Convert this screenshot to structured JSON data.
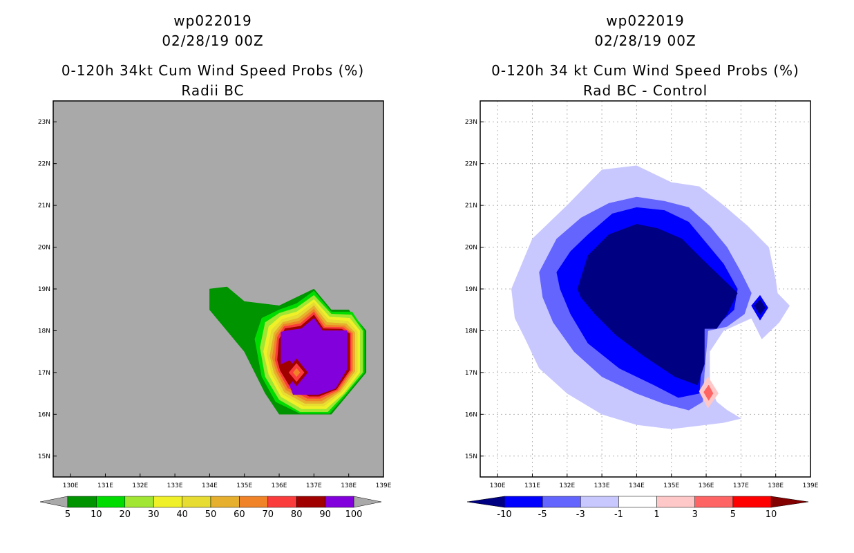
{
  "left_panel": {
    "title_lines": [
      "wp022019",
      "02/28/19 00Z",
      "0-120h 34kt Cum Wind Speed Probs (%)",
      "Radii BC"
    ],
    "background_color": "#a9a9a9",
    "colorbar": {
      "colors": [
        "#009400",
        "#00dc00",
        "#a0e632",
        "#f0f028",
        "#e6dc32",
        "#e6af2d",
        "#f08228",
        "#fa3c3c",
        "#a00000",
        "#8200dc"
      ],
      "labels": [
        "5",
        "10",
        "20",
        "30",
        "40",
        "50",
        "60",
        "70",
        "80",
        "90",
        "100"
      ]
    }
  },
  "right_panel": {
    "title_lines": [
      "wp022019",
      "02/28/19 00Z",
      "0-120h 34 kt Cum Wind Speed Probs (%)",
      "Rad BC - Control"
    ],
    "background_color": "#ffffff",
    "colorbar": {
      "colors": [
        "#000082",
        "#0000ff",
        "#6464ff",
        "#c8c8ff",
        "#ffffff",
        "#ffc8c8",
        "#ff6464",
        "#ff0000",
        "#820000"
      ],
      "labels": [
        "-10",
        "-5",
        "-3",
        "-1",
        "1",
        "3",
        "5",
        "10"
      ]
    }
  },
  "axes": {
    "lon_ticks": [
      "130E",
      "131E",
      "132E",
      "133E",
      "134E",
      "135E",
      "136E",
      "137E",
      "138E",
      "139E"
    ],
    "lat_ticks": [
      "15N",
      "16N",
      "17N",
      "18N",
      "19N",
      "20N",
      "21N",
      "22N",
      "23N"
    ],
    "lon_range": [
      129.5,
      139
    ],
    "lat_range": [
      14.5,
      23.5
    ]
  },
  "map_data": {
    "left_contours": [
      {
        "level": "5",
        "color": "#009400",
        "points": [
          [
            134,
            19
          ],
          [
            134.5,
            19.05
          ],
          [
            135,
            18.7
          ],
          [
            136,
            18.6
          ],
          [
            136.5,
            18.8
          ],
          [
            137,
            19
          ],
          [
            137.5,
            18.5
          ],
          [
            138,
            18.5
          ],
          [
            138.5,
            18
          ],
          [
            138.5,
            17
          ],
          [
            138,
            16.5
          ],
          [
            137.5,
            16
          ],
          [
            136,
            16
          ],
          [
            135.6,
            16.5
          ],
          [
            135,
            17.5
          ],
          [
            134,
            18.5
          ]
        ]
      },
      {
        "level": "10",
        "color": "#00dc00",
        "points": [
          [
            135.3,
            17.8
          ],
          [
            135.5,
            18.3
          ],
          [
            136,
            18.5
          ],
          [
            136.5,
            18.65
          ],
          [
            137,
            18.95
          ],
          [
            137.5,
            18.45
          ],
          [
            138.1,
            18.45
          ],
          [
            138.45,
            18
          ],
          [
            138.45,
            17
          ],
          [
            137.95,
            16.5
          ],
          [
            137.45,
            16.02
          ],
          [
            136.6,
            16.02
          ],
          [
            135.9,
            16.3
          ],
          [
            135.5,
            16.9
          ]
        ]
      },
      {
        "level": "20",
        "color": "#a0e632",
        "points": [
          [
            135.45,
            17.6
          ],
          [
            135.6,
            18.2
          ],
          [
            136,
            18.42
          ],
          [
            136.5,
            18.55
          ],
          [
            137,
            18.85
          ],
          [
            137.5,
            18.4
          ],
          [
            138.08,
            18.38
          ],
          [
            138.4,
            18
          ],
          [
            138.4,
            17
          ],
          [
            137.9,
            16.5
          ],
          [
            137.4,
            16.06
          ],
          [
            136.6,
            16.06
          ],
          [
            136,
            16.35
          ],
          [
            135.6,
            16.9
          ]
        ]
      },
      {
        "level": "30",
        "color": "#f0f028",
        "points": [
          [
            135.55,
            17.5
          ],
          [
            135.7,
            18.1
          ],
          [
            136.05,
            18.35
          ],
          [
            136.5,
            18.45
          ],
          [
            137,
            18.75
          ],
          [
            137.45,
            18.33
          ],
          [
            138.03,
            18.3
          ],
          [
            138.32,
            18
          ],
          [
            138.32,
            17
          ],
          [
            137.85,
            16.5
          ],
          [
            137.35,
            16.13
          ],
          [
            136.65,
            16.13
          ],
          [
            136.05,
            16.42
          ],
          [
            135.7,
            16.95
          ]
        ]
      },
      {
        "level": "40",
        "color": "#e6dc32",
        "points": [
          [
            135.65,
            17.45
          ],
          [
            135.78,
            18.02
          ],
          [
            136.08,
            18.27
          ],
          [
            136.52,
            18.38
          ],
          [
            137,
            18.68
          ],
          [
            137.42,
            18.27
          ],
          [
            137.98,
            18.23
          ],
          [
            138.25,
            17.98
          ],
          [
            138.25,
            17.02
          ],
          [
            137.8,
            16.52
          ],
          [
            137.3,
            16.2
          ],
          [
            136.7,
            16.2
          ],
          [
            136.1,
            16.48
          ],
          [
            135.78,
            16.98
          ]
        ]
      },
      {
        "level": "50",
        "color": "#e6af2d",
        "points": [
          [
            135.73,
            17.4
          ],
          [
            135.85,
            17.95
          ],
          [
            136.1,
            18.2
          ],
          [
            136.55,
            18.3
          ],
          [
            137,
            18.6
          ],
          [
            137.38,
            18.2
          ],
          [
            137.93,
            18.17
          ],
          [
            138.18,
            17.96
          ],
          [
            138.18,
            17.03
          ],
          [
            137.75,
            16.54
          ],
          [
            137.26,
            16.26
          ],
          [
            136.74,
            16.26
          ],
          [
            136.15,
            16.53
          ],
          [
            135.85,
            17
          ]
        ]
      },
      {
        "level": "60",
        "color": "#f08228",
        "points": [
          [
            135.8,
            17.35
          ],
          [
            135.9,
            17.9
          ],
          [
            136.12,
            18.15
          ],
          [
            136.57,
            18.23
          ],
          [
            137,
            18.52
          ],
          [
            137.34,
            18.14
          ],
          [
            137.88,
            18.12
          ],
          [
            138.12,
            17.95
          ],
          [
            138.12,
            17.04
          ],
          [
            137.72,
            16.56
          ],
          [
            137.22,
            16.32
          ],
          [
            136.78,
            16.32
          ],
          [
            136.2,
            16.58
          ],
          [
            135.92,
            17.02
          ]
        ]
      },
      {
        "level": "70",
        "color": "#fa3c3c",
        "points": [
          [
            135.88,
            17.3
          ],
          [
            135.95,
            17.85
          ],
          [
            136.14,
            18.1
          ],
          [
            136.6,
            18.17
          ],
          [
            137,
            18.45
          ],
          [
            137.3,
            18.09
          ],
          [
            137.84,
            18.08
          ],
          [
            138.07,
            17.94
          ],
          [
            138.07,
            17.05
          ],
          [
            137.68,
            16.58
          ],
          [
            137.18,
            16.38
          ],
          [
            136.82,
            16.38
          ],
          [
            136.25,
            16.63
          ],
          [
            135.98,
            17.04
          ]
        ]
      },
      {
        "level": "80",
        "color": "#a00000",
        "points": [
          [
            135.95,
            17.3
          ],
          [
            136,
            17.8
          ],
          [
            136.17,
            18.05
          ],
          [
            136.62,
            18.11
          ],
          [
            137,
            18.38
          ],
          [
            137.27,
            18.05
          ],
          [
            137.8,
            18.04
          ],
          [
            138.03,
            17.93
          ],
          [
            138.03,
            17.06
          ],
          [
            137.65,
            16.6
          ],
          [
            137.15,
            16.43
          ],
          [
            136.86,
            16.43
          ],
          [
            136.3,
            16.68
          ],
          [
            136.03,
            17.05
          ]
        ]
      },
      {
        "level": "90",
        "color": "#8200dc",
        "points": [
          [
            136.05,
            17.2
          ],
          [
            136.05,
            17.97
          ],
          [
            136.22,
            18
          ],
          [
            136.64,
            18.05
          ],
          [
            137,
            18.3
          ],
          [
            137.25,
            18
          ],
          [
            137.95,
            18
          ],
          [
            137.95,
            17.08
          ],
          [
            137.62,
            16.62
          ],
          [
            137.12,
            16.47
          ],
          [
            136.4,
            16.47
          ],
          [
            136.3,
            16.7
          ],
          [
            136.6,
            17
          ],
          [
            136.3,
            17.3
          ]
        ]
      },
      {
        "level": "80-inner",
        "color": "#a00000",
        "points": [
          [
            136.5,
            17.33
          ],
          [
            136.82,
            17
          ],
          [
            136.5,
            16.68
          ],
          [
            136.18,
            17
          ]
        ]
      },
      {
        "level": "70-inner",
        "color": "#fa3c3c",
        "points": [
          [
            136.5,
            17.22
          ],
          [
            136.72,
            17
          ],
          [
            136.5,
            16.78
          ],
          [
            136.28,
            17
          ]
        ]
      },
      {
        "level": "60-inner",
        "color": "#f08228",
        "points": [
          [
            136.5,
            17.1
          ],
          [
            136.6,
            17
          ],
          [
            136.5,
            16.9
          ],
          [
            136.4,
            17
          ]
        ]
      }
    ],
    "right_contours": [
      {
        "level": "-1",
        "color": "#c8c8ff",
        "points": [
          [
            130.4,
            19
          ],
          [
            131,
            20.2
          ],
          [
            132,
            21
          ],
          [
            133,
            21.85
          ],
          [
            134,
            21.95
          ],
          [
            135,
            21.55
          ],
          [
            135.8,
            21.45
          ],
          [
            136.5,
            21
          ],
          [
            137.2,
            20.5
          ],
          [
            137.8,
            20
          ],
          [
            138,
            19.2
          ],
          [
            138.05,
            18.9
          ],
          [
            138.4,
            18.6
          ],
          [
            138.1,
            18.2
          ],
          [
            137.6,
            17.8
          ],
          [
            137.3,
            18.3
          ],
          [
            136.5,
            18
          ],
          [
            136.1,
            17.5
          ],
          [
            136.1,
            16.7
          ],
          [
            136.3,
            16.3
          ],
          [
            136.6,
            16.1
          ],
          [
            137,
            15.9
          ],
          [
            136.5,
            15.8
          ],
          [
            136,
            15.75
          ],
          [
            135,
            15.65
          ],
          [
            134,
            15.75
          ],
          [
            133,
            16
          ],
          [
            132,
            16.5
          ],
          [
            131.2,
            17.1
          ],
          [
            130.8,
            17.8
          ],
          [
            130.5,
            18.3
          ]
        ]
      },
      {
        "level": "-3",
        "color": "#6464ff",
        "points": [
          [
            131.2,
            19.4
          ],
          [
            131.7,
            20.2
          ],
          [
            132.4,
            20.7
          ],
          [
            133.2,
            21.05
          ],
          [
            134,
            21.2
          ],
          [
            134.8,
            21.1
          ],
          [
            135.5,
            20.95
          ],
          [
            136.1,
            20.5
          ],
          [
            136.6,
            20
          ],
          [
            137,
            19.4
          ],
          [
            137.3,
            18.9
          ],
          [
            137.1,
            18.4
          ],
          [
            136.6,
            18.1
          ],
          [
            136.05,
            18
          ],
          [
            135.95,
            17
          ],
          [
            135.9,
            16.3
          ],
          [
            135.5,
            16.1
          ],
          [
            134.8,
            16.25
          ],
          [
            134,
            16.5
          ],
          [
            133,
            16.9
          ],
          [
            132.2,
            17.5
          ],
          [
            131.6,
            18.2
          ],
          [
            131.3,
            18.8
          ]
        ]
      },
      {
        "level": "-5",
        "color": "#0000ff",
        "points": [
          [
            131.7,
            19.4
          ],
          [
            132.1,
            19.9
          ],
          [
            132.6,
            20.3
          ],
          [
            133.3,
            20.8
          ],
          [
            134,
            20.95
          ],
          [
            134.8,
            20.88
          ],
          [
            135.5,
            20.6
          ],
          [
            136,
            20.1
          ],
          [
            136.5,
            19.6
          ],
          [
            136.9,
            19
          ],
          [
            136.8,
            18.5
          ],
          [
            136.4,
            18.2
          ],
          [
            135.95,
            18.05
          ],
          [
            135.85,
            17
          ],
          [
            135.8,
            16.5
          ],
          [
            135.2,
            16.4
          ],
          [
            134.5,
            16.7
          ],
          [
            133.5,
            17.1
          ],
          [
            132.6,
            17.7
          ],
          [
            132.1,
            18.4
          ],
          [
            131.8,
            19
          ]
        ]
      },
      {
        "level": "-10",
        "color": "#000082",
        "points": [
          [
            132.3,
            19
          ],
          [
            132.6,
            19.8
          ],
          [
            133.2,
            20.3
          ],
          [
            134,
            20.55
          ],
          [
            134.6,
            20.45
          ],
          [
            135.3,
            20.2
          ],
          [
            135.9,
            19.7
          ],
          [
            136.4,
            19.3
          ],
          [
            136.9,
            18.9
          ],
          [
            136.6,
            18.4
          ],
          [
            136.3,
            18.05
          ],
          [
            135.95,
            18.05
          ],
          [
            135.95,
            17.2
          ],
          [
            135.75,
            16.7
          ],
          [
            135.1,
            16.9
          ],
          [
            134.2,
            17.4
          ],
          [
            133.4,
            17.9
          ],
          [
            132.8,
            18.4
          ],
          [
            132.4,
            18.8
          ]
        ]
      },
      {
        "level": "-5-blob",
        "color": "#0000ff",
        "points": [
          [
            137.3,
            18.6
          ],
          [
            137.55,
            18.85
          ],
          [
            137.78,
            18.55
          ],
          [
            137.55,
            18.25
          ]
        ]
      },
      {
        "level": "-10-blob",
        "color": "#000082",
        "points": [
          [
            137.38,
            18.6
          ],
          [
            137.55,
            18.75
          ],
          [
            137.7,
            18.55
          ],
          [
            137.55,
            18.38
          ]
        ]
      },
      {
        "level": "3-blob",
        "color": "#ffc8c8",
        "points": [
          [
            135.8,
            16.55
          ],
          [
            136.05,
            16.9
          ],
          [
            136.35,
            16.5
          ],
          [
            136.05,
            16.15
          ]
        ]
      },
      {
        "level": "5-blob",
        "color": "#ff6464",
        "points": [
          [
            135.93,
            16.53
          ],
          [
            136.07,
            16.7
          ],
          [
            136.2,
            16.5
          ],
          [
            136.07,
            16.33
          ]
        ]
      }
    ]
  }
}
